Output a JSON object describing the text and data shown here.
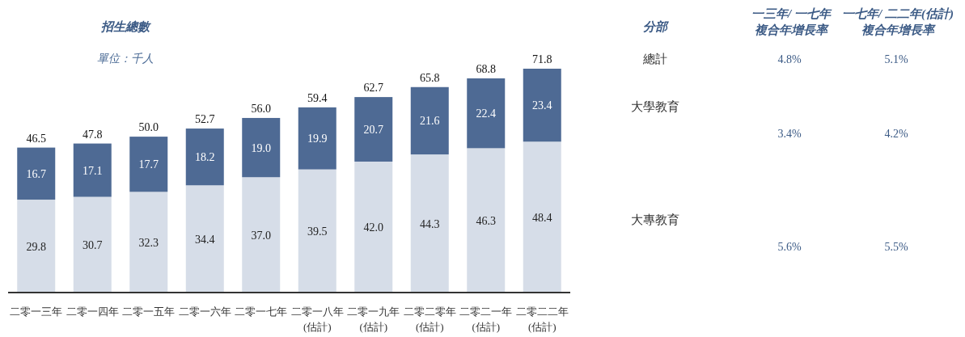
{
  "chart_data": [
    {
      "type": "bar",
      "title": "招生總數",
      "subtitle": "單位：千人",
      "stacked": true,
      "categories": [
        "二零一三年",
        "二零一四年",
        "二零一五年",
        "二零一六年",
        "二零一七年",
        "二零一八年\n(估計)",
        "二零一九年\n(估計)",
        "二零二零年\n(估計)",
        "二零二一年\n(估計)",
        "二零二二年\n(估計)"
      ],
      "series": [
        {
          "color": "#d6dde8",
          "values": [
            29.8,
            30.7,
            32.3,
            34.4,
            37.0,
            39.5,
            42.0,
            44.3,
            46.3,
            48.4
          ],
          "value_labels": [
            "29.8",
            "30.7",
            "32.3",
            "34.4",
            "37.0",
            "39.5",
            "42.0",
            "44.3",
            "46.3",
            "48.4"
          ]
        },
        {
          "color": "#4e6a94",
          "values": [
            16.7,
            17.1,
            17.7,
            18.2,
            19.0,
            19.9,
            20.7,
            21.6,
            22.4,
            23.4
          ],
          "value_labels": [
            "16.7",
            "17.1",
            "17.7",
            "18.2",
            "19.0",
            "19.9",
            "20.7",
            "21.6",
            "22.4",
            "23.4"
          ]
        }
      ],
      "totals": [
        "46.5",
        "47.8",
        "50.0",
        "52.7",
        "56.0",
        "59.4",
        "62.7",
        "65.8",
        "68.8",
        "71.8"
      ]
    },
    {
      "type": "other",
      "title": "分部",
      "categories": [
        "總計",
        "大學教育",
        "大專教育"
      ],
      "series": [
        {
          "name": "一三年/ 一七年",
          "values": [
            4.8,
            3.4,
            5.6
          ],
          "value_labels": [
            "4.8%",
            "3.4%",
            "5.6%"
          ]
        },
        {
          "name": "一七年/ 二二年(估計)",
          "values": [
            5.1,
            4.2,
            5.5
          ],
          "value_labels": [
            "5.1%",
            "4.2%",
            "5.5%"
          ]
        }
      ],
      "annotations": [
        "複合年增長率",
        "複合年增長率"
      ]
    }
  ]
}
